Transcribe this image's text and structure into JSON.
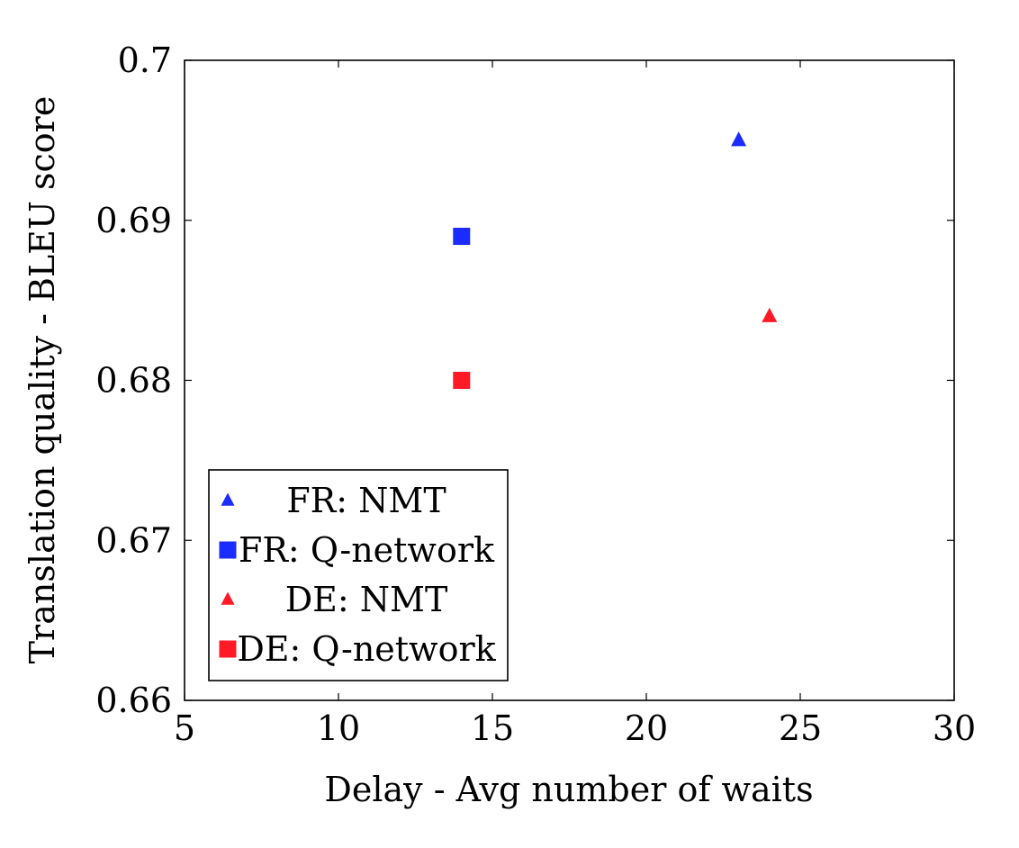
{
  "chart_data": {
    "type": "scatter",
    "xlabel": "Delay - Avg number of waits",
    "ylabel": "Translation quality - BLEU score",
    "xlim": [
      5,
      30
    ],
    "ylim": [
      0.66,
      0.7
    ],
    "x_ticks": [
      5,
      10,
      15,
      20,
      25,
      30
    ],
    "y_ticks": [
      0.66,
      0.67,
      0.68,
      0.69,
      0.7
    ],
    "x_tick_labels": [
      "5",
      "10",
      "15",
      "20",
      "25",
      "30"
    ],
    "y_tick_labels": [
      "0.66",
      "0.67",
      "0.68",
      "0.69",
      "0.7"
    ],
    "grid": false,
    "legend_position": "bottom-left",
    "series": [
      {
        "name": "FR: NMT",
        "marker": "triangle",
        "color": "#1a2cff",
        "points": [
          {
            "x": 23,
            "y": 0.695
          }
        ]
      },
      {
        "name": "FR: Q-network",
        "marker": "square",
        "color": "#1a2cff",
        "points": [
          {
            "x": 14,
            "y": 0.689
          }
        ]
      },
      {
        "name": "DE: NMT",
        "marker": "triangle",
        "color": "#ff1a26",
        "points": [
          {
            "x": 24,
            "y": 0.684
          }
        ]
      },
      {
        "name": "DE: Q-network",
        "marker": "square",
        "color": "#ff1a26",
        "points": [
          {
            "x": 14,
            "y": 0.68
          }
        ]
      }
    ]
  }
}
